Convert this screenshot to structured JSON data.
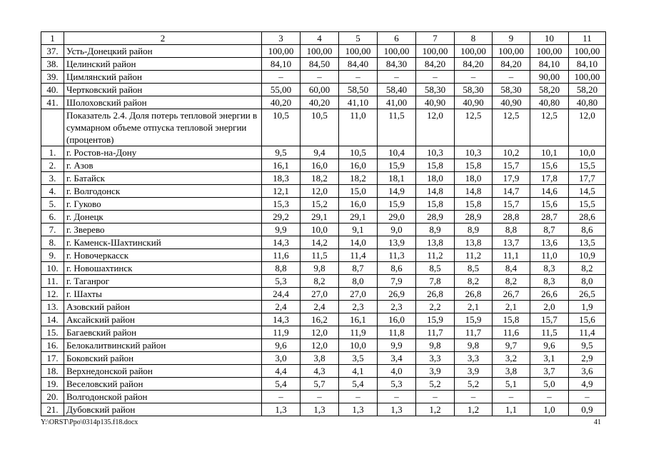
{
  "table": {
    "headers": [
      "1",
      "2",
      "3",
      "4",
      "5",
      "6",
      "7",
      "8",
      "9",
      "10",
      "11"
    ],
    "rows": [
      {
        "num": "37.",
        "name": "Усть-Донецкий район",
        "values": [
          "100,00",
          "100,00",
          "100,00",
          "100,00",
          "100,00",
          "100,00",
          "100,00",
          "100,00",
          "100,00"
        ]
      },
      {
        "num": "38.",
        "name": "Целинский район",
        "values": [
          "84,10",
          "84,50",
          "84,40",
          "84,30",
          "84,20",
          "84,20",
          "84,20",
          "84,10",
          "84,10"
        ]
      },
      {
        "num": "39.",
        "name": "Цимлянский район",
        "values": [
          "–",
          "–",
          "–",
          "–",
          "–",
          "–",
          "–",
          "90,00",
          "100,00"
        ]
      },
      {
        "num": "40.",
        "name": "Чертковский район",
        "values": [
          "55,00",
          "60,00",
          "58,50",
          "58,40",
          "58,30",
          "58,30",
          "58,30",
          "58,20",
          "58,20"
        ]
      },
      {
        "num": "41.",
        "name": "Шолоховский район",
        "values": [
          "40,20",
          "40,20",
          "41,10",
          "41,00",
          "40,90",
          "40,90",
          "40,90",
          "40,80",
          "40,80"
        ]
      },
      {
        "num": "",
        "name": "Показатель 2.4. Доля потерь тепловой энергии в суммарном объеме отпуска тепловой энергии (процентов)",
        "values": [
          "10,5",
          "10,5",
          "11,0",
          "11,5",
          "12,0",
          "12,5",
          "12,5",
          "12,5",
          "12,0"
        ]
      },
      {
        "num": "1.",
        "name": "г. Ростов-на-Дону",
        "values": [
          "9,5",
          "9,4",
          "10,5",
          "10,4",
          "10,3",
          "10,3",
          "10,2",
          "10,1",
          "10,0"
        ]
      },
      {
        "num": "2.",
        "name": "г. Азов",
        "values": [
          "16,1",
          "16,0",
          "16,0",
          "15,9",
          "15,8",
          "15,8",
          "15,7",
          "15,6",
          "15,5"
        ]
      },
      {
        "num": "3.",
        "name": "г. Батайск",
        "values": [
          "18,3",
          "18,2",
          "18,2",
          "18,1",
          "18,0",
          "18,0",
          "17,9",
          "17,8",
          "17,7"
        ]
      },
      {
        "num": "4.",
        "name": "г. Волгодонск",
        "values": [
          "12,1",
          "12,0",
          "15,0",
          "14,9",
          "14,8",
          "14,8",
          "14,7",
          "14,6",
          "14,5"
        ]
      },
      {
        "num": "5.",
        "name": "г. Гуково",
        "values": [
          "15,3",
          "15,2",
          "16,0",
          "15,9",
          "15,8",
          "15,8",
          "15,7",
          "15,6",
          "15,5"
        ]
      },
      {
        "num": "6.",
        "name": "г. Донецк",
        "values": [
          "29,2",
          "29,1",
          "29,1",
          "29,0",
          "28,9",
          "28,9",
          "28,8",
          "28,7",
          "28,6"
        ]
      },
      {
        "num": "7.",
        "name": "г. Зверево",
        "values": [
          "9,9",
          "10,0",
          "9,1",
          "9,0",
          "8,9",
          "8,9",
          "8,8",
          "8,7",
          "8,6"
        ]
      },
      {
        "num": "8.",
        "name": "г. Каменск-Шахтинский",
        "values": [
          "14,3",
          "14,2",
          "14,0",
          "13,9",
          "13,8",
          "13,8",
          "13,7",
          "13,6",
          "13,5"
        ]
      },
      {
        "num": "9.",
        "name": "г. Новочеркасск",
        "values": [
          "11,6",
          "11,5",
          "11,4",
          "11,3",
          "11,2",
          "11,2",
          "11,1",
          "11,0",
          "10,9"
        ]
      },
      {
        "num": "10.",
        "name": "г. Новошахтинск",
        "values": [
          "8,8",
          "9,8",
          "8,7",
          "8,6",
          "8,5",
          "8,5",
          "8,4",
          "8,3",
          "8,2"
        ]
      },
      {
        "num": "11.",
        "name": "г. Таганрог",
        "values": [
          "5,3",
          "8,2",
          "8,0",
          "7,9",
          "7,8",
          "8,2",
          "8,2",
          "8,3",
          "8,0"
        ]
      },
      {
        "num": "12.",
        "name": "г. Шахты",
        "values": [
          "24,4",
          "27,0",
          "27,0",
          "26,9",
          "26,8",
          "26,8",
          "26,7",
          "26,6",
          "26,5"
        ]
      },
      {
        "num": "13.",
        "name": "Азовский район",
        "values": [
          "2,4",
          "2,4",
          "2,3",
          "2,3",
          "2,2",
          "2,1",
          "2,1",
          "2,0",
          "1,9"
        ]
      },
      {
        "num": "14.",
        "name": "Аксайский район",
        "values": [
          "14,3",
          "16,2",
          "16,1",
          "16,0",
          "15,9",
          "15,9",
          "15,8",
          "15,7",
          "15,6"
        ]
      },
      {
        "num": "15.",
        "name": "Багаевский район",
        "values": [
          "11,9",
          "12,0",
          "11,9",
          "11,8",
          "11,7",
          "11,7",
          "11,6",
          "11,5",
          "11,4"
        ]
      },
      {
        "num": "16.",
        "name": "Белокалитвинский район",
        "values": [
          "9,6",
          "12,0",
          "10,0",
          "9,9",
          "9,8",
          "9,8",
          "9,7",
          "9,6",
          "9,5"
        ]
      },
      {
        "num": "17.",
        "name": "Боковский район",
        "values": [
          "3,0",
          "3,8",
          "3,5",
          "3,4",
          "3,3",
          "3,3",
          "3,2",
          "3,1",
          "2,9"
        ]
      },
      {
        "num": "18.",
        "name": "Верхнедонской район",
        "values": [
          "4,4",
          "4,3",
          "4,1",
          "4,0",
          "3,9",
          "3,9",
          "3,8",
          "3,7",
          "3,6"
        ]
      },
      {
        "num": "19.",
        "name": "Веселовский район",
        "values": [
          "5,4",
          "5,7",
          "5,4",
          "5,3",
          "5,2",
          "5,2",
          "5,1",
          "5,0",
          "4,9"
        ]
      },
      {
        "num": "20.",
        "name": "Волгодонской район",
        "values": [
          "–",
          "–",
          "–",
          "–",
          "–",
          "–",
          "–",
          "–",
          "–"
        ]
      },
      {
        "num": "21.",
        "name": "Дубовский район",
        "values": [
          "1,3",
          "1,3",
          "1,3",
          "1,3",
          "1,2",
          "1,2",
          "1,1",
          "1,0",
          "0,9"
        ]
      }
    ]
  },
  "footer": {
    "file_path": "Y:\\ORST\\Ppo\\0314p135.f18.docx",
    "page_number": "41"
  }
}
